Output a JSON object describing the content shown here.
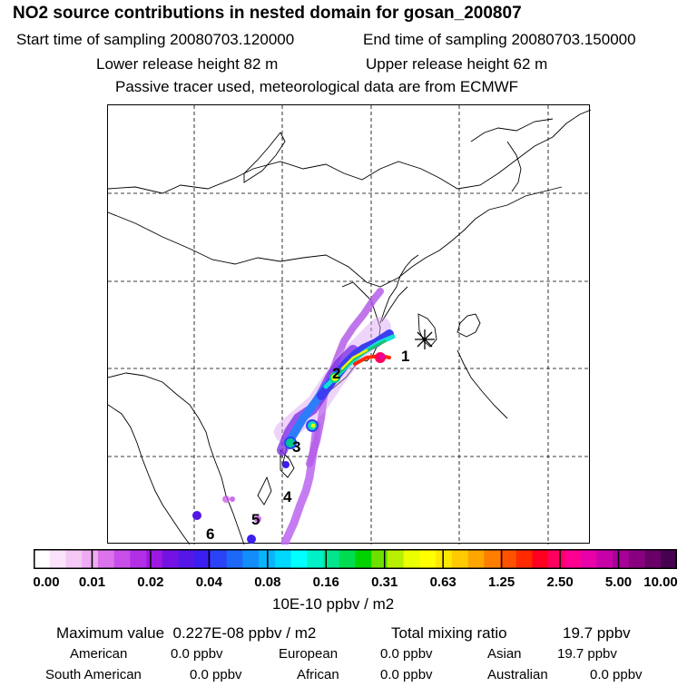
{
  "header": {
    "title": "NO2 source contributions in nested domain for gosan_200807",
    "start_time": "Start time of sampling 20080703.120000",
    "end_time": "End time of sampling 20080703.150000",
    "lower_height": "Lower release height   82 m",
    "upper_height": "Upper release height   62 m",
    "tracer_note": "Passive tracer used, meteorological data are from ECMWF"
  },
  "map": {
    "region_labels": [
      "1",
      "2",
      "3",
      "4",
      "5",
      "6"
    ],
    "receptor_marker": "star-icon"
  },
  "colorbar": {
    "tick_labels": [
      "0.00",
      "0.01",
      "0.02",
      "0.04",
      "0.08",
      "0.16",
      "0.31",
      "0.63",
      "1.25",
      "2.50",
      "5.00",
      "10.00"
    ],
    "colors": [
      "#ffffff",
      "#fbe4fb",
      "#f5c8f6",
      "#eeabf1",
      "#dc73ec",
      "#c84ee9",
      "#b22fe6",
      "#9e18e3",
      "#7412e4",
      "#5517e8",
      "#3a1ff0",
      "#2a43f6",
      "#1e68f8",
      "#138dfa",
      "#0ab4fc",
      "#00d8fd",
      "#00ffff",
      "#00f0c8",
      "#00e68c",
      "#00dc50",
      "#00d200",
      "#6de000",
      "#b8ef00",
      "#eaff00",
      "#ffff00",
      "#ffe800",
      "#ffcb00",
      "#ffa600",
      "#ff7e00",
      "#ff5200",
      "#ff2a00",
      "#ff0020",
      "#ff0060",
      "#ff0090",
      "#e800a8",
      "#c800a8",
      "#a80098",
      "#880080",
      "#680066",
      "#480050"
    ],
    "units": "10E-10 ppbv / m2"
  },
  "stats": {
    "max_label": "Maximum value",
    "max_value": "0.227E-08 ppbv / m2",
    "total_label": "Total mixing ratio",
    "total_value": "19.7 ppbv",
    "regions": [
      {
        "name": "American",
        "value": "0.0 ppbv"
      },
      {
        "name": "European",
        "value": "0.0 ppbv"
      },
      {
        "name": "Asian",
        "value": "19.7 ppbv"
      },
      {
        "name": "South American",
        "value": "0.0 ppbv"
      },
      {
        "name": "African",
        "value": "0.0 ppbv"
      },
      {
        "name": "Australian",
        "value": "0.0 ppbv"
      }
    ]
  }
}
